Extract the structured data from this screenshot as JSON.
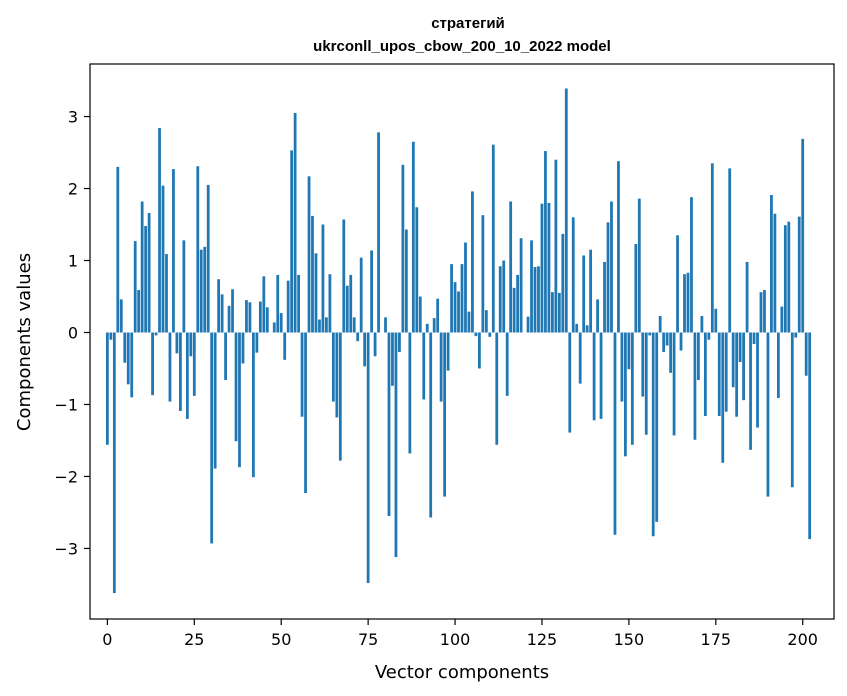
{
  "chart_data": {
    "type": "bar",
    "title": "стратегий",
    "subtitle": "ukrconll_upos_cbow_200_10_2022 model",
    "xlabel": "Vector components",
    "ylabel": "Components values",
    "xlim": [
      -5,
      209
    ],
    "ylim": [
      -3.98,
      3.73
    ],
    "xticks": [
      0,
      25,
      50,
      75,
      100,
      125,
      150,
      175,
      200
    ],
    "yticks": [
      -3,
      -2,
      -1,
      0,
      1,
      2,
      3
    ],
    "grid": false,
    "bar_color": "#1f77b4",
    "values": [
      -1.56,
      -0.1,
      -3.62,
      2.3,
      0.46,
      -0.42,
      -0.72,
      -0.9,
      1.27,
      0.59,
      1.82,
      1.48,
      1.66,
      -0.87,
      -0.04,
      2.84,
      2.04,
      1.09,
      -0.96,
      2.27,
      -0.29,
      -1.09,
      1.28,
      -1.2,
      -0.33,
      -0.88,
      2.31,
      1.15,
      1.19,
      2.05,
      -2.93,
      -1.89,
      0.74,
      0.53,
      -0.66,
      0.37,
      0.6,
      -1.51,
      -1.87,
      -0.43,
      0.45,
      0.42,
      -2.01,
      -0.28,
      0.43,
      0.78,
      0.35,
      0.0,
      0.14,
      0.8,
      0.27,
      -0.38,
      0.72,
      2.53,
      3.05,
      0.8,
      -1.17,
      -2.23,
      2.17,
      1.62,
      1.1,
      0.18,
      1.5,
      0.21,
      0.81,
      -0.96,
      -1.18,
      -1.78,
      1.57,
      0.65,
      0.8,
      0.21,
      -0.12,
      1.04,
      -0.47,
      -3.48,
      1.14,
      -0.33,
      2.78,
      0.0,
      0.21,
      -2.55,
      -0.74,
      -3.12,
      -0.27,
      2.33,
      1.43,
      -1.68,
      2.65,
      1.74,
      0.5,
      -0.93,
      0.12,
      -2.57,
      0.2,
      0.47,
      -0.96,
      -2.28,
      -0.53,
      0.95,
      0.7,
      0.57,
      0.95,
      1.25,
      0.29,
      1.96,
      -0.05,
      -0.5,
      1.63,
      0.31,
      -0.06,
      2.61,
      -1.56,
      0.92,
      1.0,
      -0.88,
      1.82,
      0.62,
      0.8,
      1.31,
      0.0,
      0.22,
      1.28,
      0.91,
      0.92,
      1.79,
      2.52,
      1.8,
      0.56,
      2.4,
      0.55,
      1.37,
      3.39,
      -1.39,
      1.6,
      0.12,
      -0.71,
      1.07,
      0.1,
      1.15,
      -1.22,
      0.46,
      -1.2,
      0.98,
      1.53,
      1.82,
      -2.81,
      2.38,
      -0.96,
      -1.72,
      -0.51,
      -1.56,
      1.23,
      1.86,
      -0.89,
      -1.42,
      -0.04,
      -2.83,
      -2.63,
      0.23,
      -0.27,
      -0.18,
      -0.56,
      -1.43,
      1.35,
      -0.25,
      0.81,
      0.83,
      1.88,
      -1.49,
      -0.66,
      0.23,
      -1.16,
      -0.1,
      2.35,
      0.33,
      -1.16,
      -1.81,
      -1.1,
      2.28,
      -0.76,
      -1.17,
      -0.41,
      -0.94,
      0.98,
      -1.63,
      -0.16,
      -1.32,
      0.56,
      0.59,
      -2.28,
      1.91,
      1.65,
      -0.91,
      0.36,
      1.49,
      1.54,
      -2.15,
      -0.07,
      1.61,
      2.69,
      -0.6,
      -2.87
    ]
  }
}
